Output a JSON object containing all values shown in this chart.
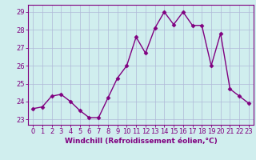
{
  "x": [
    0,
    1,
    2,
    3,
    4,
    5,
    6,
    7,
    8,
    9,
    10,
    11,
    12,
    13,
    14,
    15,
    16,
    17,
    18,
    19,
    20,
    21,
    22,
    23
  ],
  "y": [
    23.6,
    23.7,
    24.3,
    24.4,
    24.0,
    23.5,
    23.1,
    23.1,
    24.2,
    25.3,
    26.0,
    27.6,
    26.7,
    28.1,
    29.0,
    28.3,
    29.0,
    28.25,
    28.25,
    26.0,
    27.8,
    24.7,
    24.3,
    23.9
  ],
  "line_color": "#800080",
  "marker": "D",
  "markersize": 2.5,
  "linewidth": 1.0,
  "xlabel": "Windchill (Refroidissement éolien,°C)",
  "xlabel_fontsize": 6.5,
  "xlim": [
    -0.5,
    23.5
  ],
  "ylim": [
    22.7,
    29.4
  ],
  "yticks": [
    23,
    24,
    25,
    26,
    27,
    28,
    29
  ],
  "xticks": [
    0,
    1,
    2,
    3,
    4,
    5,
    6,
    7,
    8,
    9,
    10,
    11,
    12,
    13,
    14,
    15,
    16,
    17,
    18,
    19,
    20,
    21,
    22,
    23
  ],
  "bg_color": "#d0eeee",
  "grid_color": "#b0b8d8",
  "tick_fontsize": 6.0,
  "tick_color": "#800080",
  "spine_color": "#800080"
}
